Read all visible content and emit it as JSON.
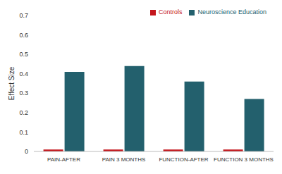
{
  "chart_data": {
    "type": "bar",
    "y_label": "Effect Size",
    "categories": [
      "PAIN-AFTER",
      "PAIN 3 MONTHS",
      "FUNCTION-AFTER",
      "FUNCTION 3 MONTHS"
    ],
    "series": [
      {
        "name": "Controls",
        "color": "#c4161c",
        "values": [
          0.01,
          0.01,
          0.01,
          0.01
        ]
      },
      {
        "name": "Neuroscience Education",
        "color": "#23606d",
        "values": [
          0.41,
          0.44,
          0.36,
          0.27
        ]
      }
    ],
    "ylim": [
      0,
      0.7
    ],
    "yticks": [
      0,
      0.1,
      0.2,
      0.3,
      0.4,
      0.5,
      0.6,
      0.7
    ],
    "grid": false,
    "legend": "upper right"
  }
}
